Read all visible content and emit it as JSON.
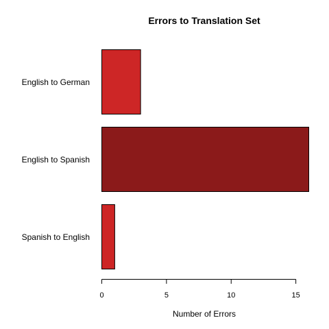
{
  "chart_data": {
    "type": "bar",
    "orientation": "horizontal",
    "title": "Errors to Translation Set",
    "xlabel": "Number of Errors",
    "ylabel": "",
    "categories": [
      "English to German",
      "English to Spanish",
      "Spanish to English"
    ],
    "values": [
      3,
      16,
      1
    ],
    "colors": [
      "#cd2626",
      "#8b1a1a",
      "#cd2626"
    ],
    "xlim": [
      0,
      16
    ],
    "xticks": [
      0,
      5,
      10,
      15
    ],
    "grid": false,
    "legend": "none"
  }
}
